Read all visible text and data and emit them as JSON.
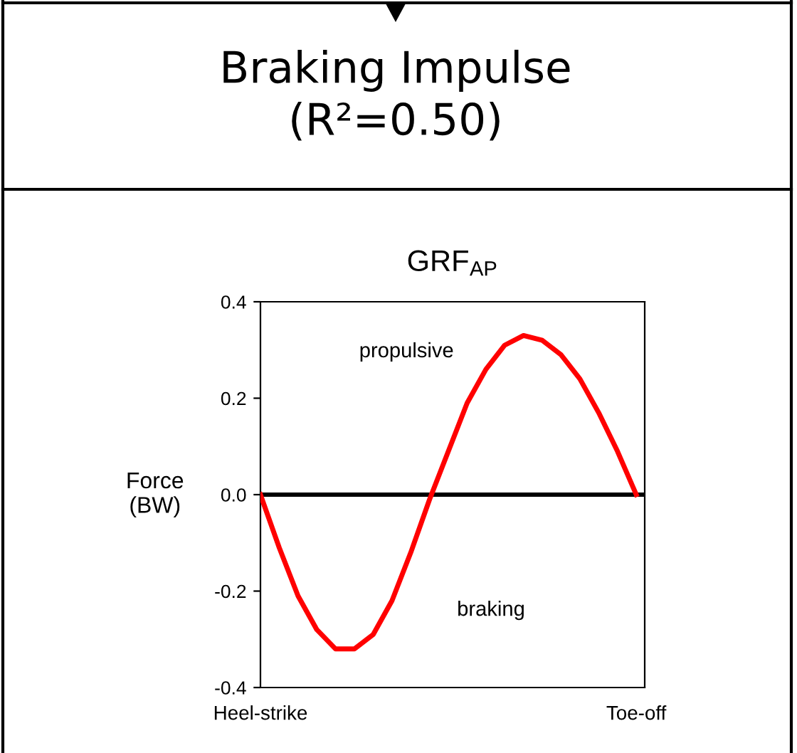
{
  "chart_data": {
    "type": "line",
    "title": "Braking Impulse\n(R²=0.50)",
    "subtitle": "GRF$_{AP}$",
    "ylabel": "Force\n(BW)",
    "categories": [
      "Heel-strike",
      null,
      null,
      null,
      null,
      null,
      null,
      null,
      null,
      null,
      null,
      null,
      null,
      null,
      null,
      null,
      null,
      null,
      null,
      null,
      "Toe-off"
    ],
    "series": [
      {
        "color": "#ff0000",
        "values": [
          0,
          -0.11,
          -0.21,
          -0.28,
          -0.32,
          -0.32,
          -0.29,
          -0.22,
          -0.12,
          -0.01,
          0.09,
          0.19,
          0.26,
          0.31,
          0.33,
          0.32,
          0.29,
          0.24,
          0.17,
          0.09,
          0
        ]
      }
    ],
    "ylim": [
      -0.4,
      0.4
    ],
    "yticks": [
      0.4,
      0.2,
      {
        "value": 0,
        "label": "0.0"
      },
      -0.2,
      -0.4
    ],
    "ref_lines": [
      {
        "axis": "y",
        "value": 0,
        "color": "#000000"
      }
    ],
    "annotations": [
      "propulsive",
      "braking"
    ],
    "grid": false,
    "legend": false,
    "marker": "none",
    "line_style": "solid"
  }
}
